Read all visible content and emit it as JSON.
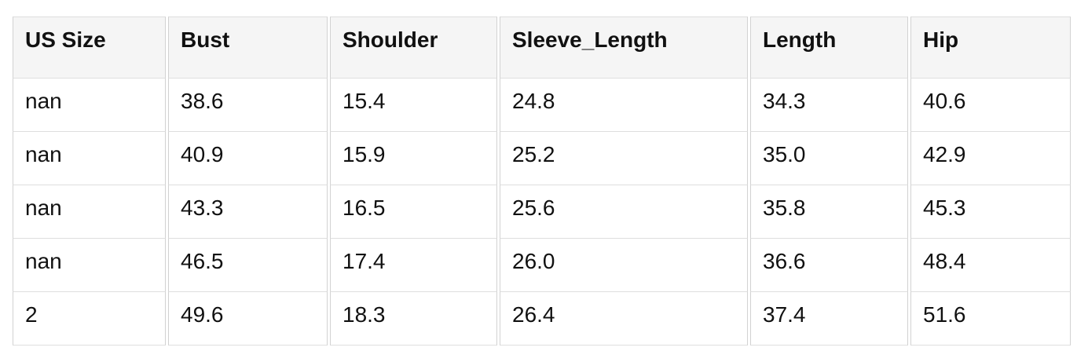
{
  "table": {
    "columns": [
      "US Size",
      "Bust",
      "Shoulder",
      "Sleeve_Length",
      "Length",
      "Hip"
    ],
    "rows": [
      [
        "nan",
        "38.6",
        "15.4",
        "24.8",
        "34.3",
        "40.6"
      ],
      [
        "nan",
        "40.9",
        "15.9",
        "25.2",
        "35.0",
        "42.9"
      ],
      [
        "nan",
        "43.3",
        "16.5",
        "25.6",
        "35.8",
        "45.3"
      ],
      [
        "nan",
        "46.5",
        "17.4",
        "26.0",
        "36.6",
        "48.4"
      ],
      [
        "2",
        "49.6",
        "18.3",
        "26.4",
        "37.4",
        "51.6"
      ]
    ]
  },
  "chart_data": {
    "type": "table",
    "columns": [
      "US Size",
      "Bust",
      "Shoulder",
      "Sleeve_Length",
      "Length",
      "Hip"
    ],
    "rows": [
      [
        "nan",
        38.6,
        15.4,
        24.8,
        34.3,
        40.6
      ],
      [
        "nan",
        40.9,
        15.9,
        25.2,
        35.0,
        42.9
      ],
      [
        "nan",
        43.3,
        16.5,
        25.6,
        35.8,
        45.3
      ],
      [
        "nan",
        46.5,
        17.4,
        26.0,
        36.6,
        48.4
      ],
      [
        "2",
        49.6,
        18.3,
        26.4,
        37.4,
        51.6
      ]
    ]
  },
  "colors": {
    "page_bg": "#ffffff",
    "cell_bg": "#ffffff",
    "header_bg": "#f5f5f5",
    "vertical_border": "#d2d2d2",
    "horizontal_border": "#dedede",
    "text": "#111111"
  }
}
